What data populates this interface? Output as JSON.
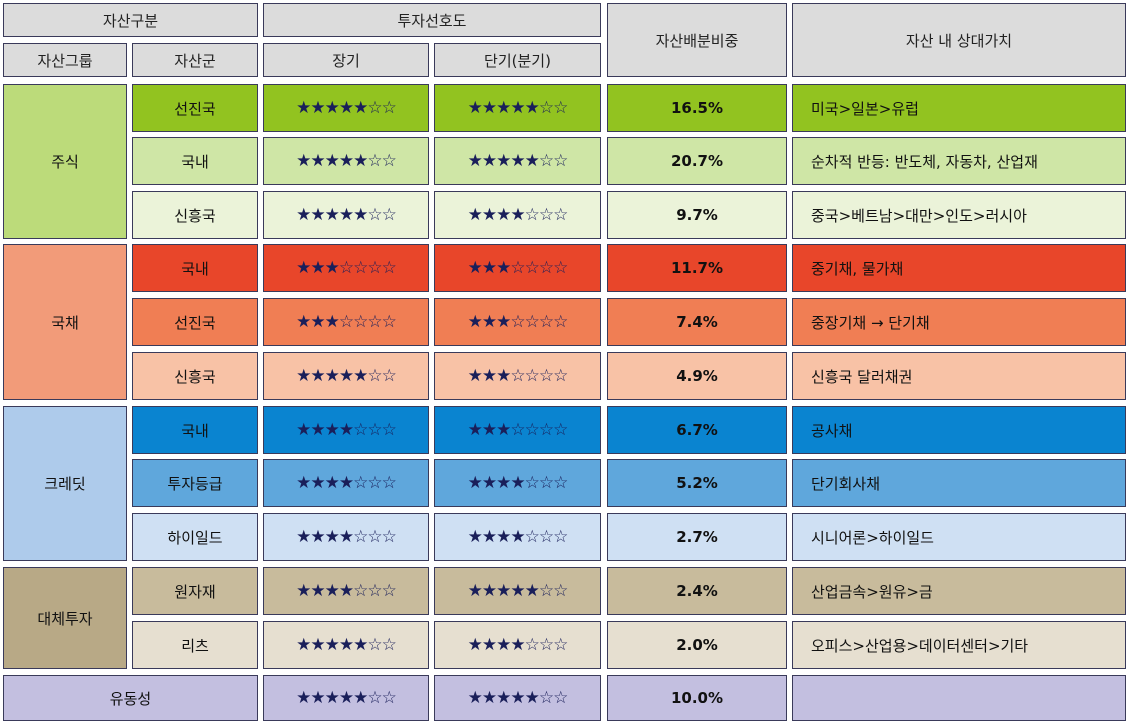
{
  "header": {
    "asset_class": "자산구분",
    "preference": "투자선호도",
    "weight": "자산배분비중",
    "relative_value": "자산 내 상대가치",
    "asset_group": "자산그룹",
    "asset_sub": "자산군",
    "long_term": "장기",
    "short_term": "단기(분기)"
  },
  "groups": [
    {
      "name": "주식",
      "color": "#bcdb7a",
      "start": 0,
      "span": 3
    },
    {
      "name": "국채",
      "color": "#f29b79",
      "start": 3,
      "span": 3
    },
    {
      "name": "크레딧",
      "color": "#aecbeb",
      "start": 6,
      "span": 3
    },
    {
      "name": "대체투자",
      "color": "#b8a986",
      "start": 9,
      "span": 2
    }
  ],
  "rows": [
    {
      "asset": "선진국",
      "long": "★★★★★☆☆",
      "short": "★★★★★☆☆",
      "weight": "16.5%",
      "relative": "미국>일본>유럽",
      "color": "#92c320"
    },
    {
      "asset": "국내",
      "long": "★★★★★☆☆",
      "short": "★★★★★☆☆",
      "weight": "20.7%",
      "relative": "순차적 반등: 반도체, 자동차, 산업재",
      "color": "#cfe6a6"
    },
    {
      "asset": "신흥국",
      "long": "★★★★★☆☆",
      "short": "★★★★☆☆☆",
      "weight": "9.7%",
      "relative": "중국>베트남>대만>인도>러시아",
      "color": "#ebf3d9"
    },
    {
      "asset": "국내",
      "long": "★★★☆☆☆☆",
      "short": "★★★☆☆☆☆",
      "weight": "11.7%",
      "relative": "중기채, 물가채",
      "color": "#e8462a"
    },
    {
      "asset": "선진국",
      "long": "★★★☆☆☆☆",
      "short": "★★★☆☆☆☆",
      "weight": "7.4%",
      "relative": "중장기채 → 단기채",
      "color": "#f07e54"
    },
    {
      "asset": "신흥국",
      "long": "★★★★★☆☆",
      "short": "★★★☆☆☆☆",
      "weight": "4.9%",
      "relative": "신흥국 달러채권",
      "color": "#f8c2a6"
    },
    {
      "asset": "국내",
      "long": "★★★★☆☆☆",
      "short": "★★★☆☆☆☆",
      "weight": "6.7%",
      "relative": "공사채",
      "color": "#0a84d0"
    },
    {
      "asset": "투자등급",
      "long": "★★★★☆☆☆",
      "short": "★★★★☆☆☆",
      "weight": "5.2%",
      "relative": "단기회사채",
      "color": "#5fa7dc"
    },
    {
      "asset": "하이일드",
      "long": "★★★★☆☆☆",
      "short": "★★★★☆☆☆",
      "weight": "2.7%",
      "relative": "시니어론>하이일드",
      "color": "#cfe0f3"
    },
    {
      "asset": "원자재",
      "long": "★★★★☆☆☆",
      "short": "★★★★★☆☆",
      "weight": "2.4%",
      "relative": "산업금속>원유>금",
      "color": "#c8bb9c"
    },
    {
      "asset": "리츠",
      "long": "★★★★★☆☆",
      "short": "★★★★☆☆☆",
      "weight": "2.0%",
      "relative": "오피스>산업용>데이터센터>기타",
      "color": "#e6dfd0"
    }
  ],
  "liquidity": {
    "name": "유동성",
    "long": "★★★★★☆☆",
    "short": "★★★★★☆☆",
    "weight": "10.0%",
    "relative": "",
    "color": "#c3bfe0"
  }
}
